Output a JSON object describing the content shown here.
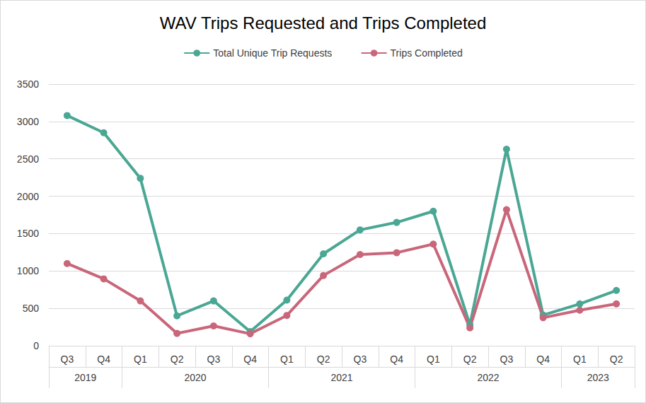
{
  "chart_data": {
    "type": "line",
    "title": "WAV Trips Requested and Trips Completed",
    "categories": [
      "Q3",
      "Q4",
      "Q1",
      "Q2",
      "Q3",
      "Q4",
      "Q1",
      "Q2",
      "Q3",
      "Q4",
      "Q1",
      "Q2",
      "Q3",
      "Q4",
      "Q1",
      "Q2"
    ],
    "category_groups": [
      "2019",
      "2019",
      "2020",
      "2020",
      "2020",
      "2020",
      "2021",
      "2021",
      "2021",
      "2021",
      "2022",
      "2022",
      "2022",
      "2022",
      "2023",
      "2023"
    ],
    "series": [
      {
        "name": "Total Unique Trip Requests",
        "color": "#4aa794",
        "values": [
          3080,
          2850,
          2240,
          400,
          600,
          190,
          610,
          1230,
          1550,
          1650,
          1800,
          280,
          2630,
          410,
          560,
          740
        ]
      },
      {
        "name": "Trips Completed",
        "color": "#c9667a",
        "values": [
          1100,
          895,
          600,
          165,
          265,
          160,
          405,
          940,
          1220,
          1245,
          1360,
          240,
          1820,
          375,
          475,
          560
        ]
      }
    ],
    "ylim": [
      0,
      3500
    ],
    "yticks": [
      0,
      500,
      1000,
      1500,
      2000,
      2500,
      3000,
      3500
    ],
    "grid": true,
    "legend": "top",
    "marker": "circle"
  }
}
